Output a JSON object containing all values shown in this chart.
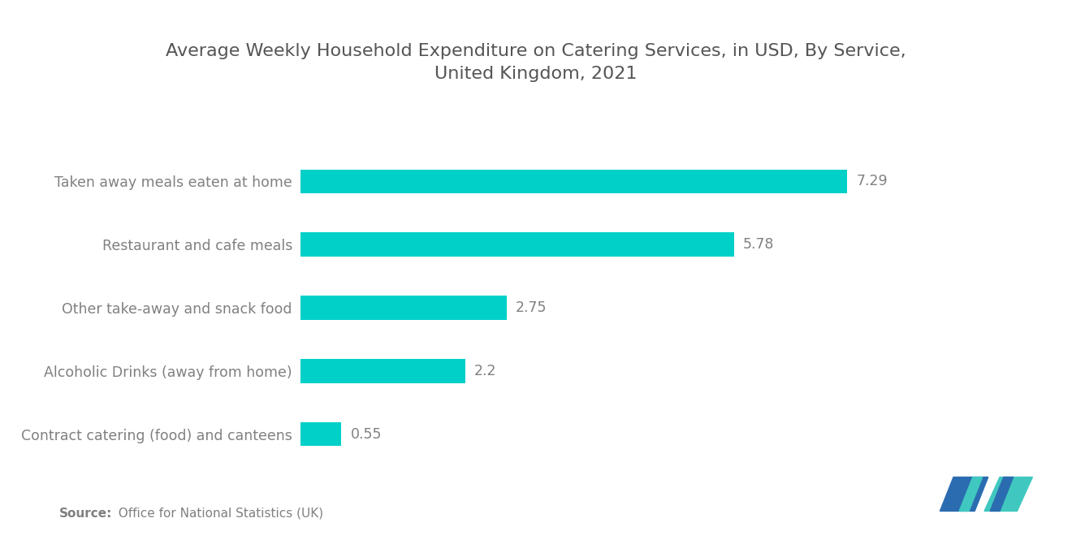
{
  "title": "Average Weekly Household Expenditure on Catering Services, in USD, By Service,\nUnited Kingdom, 2021",
  "categories": [
    "Contract catering (food) and canteens",
    "Alcoholic Drinks (away from home)",
    "Other take-away and snack food",
    "Restaurant and cafe meals",
    "Taken away meals eaten at home"
  ],
  "values": [
    0.55,
    2.2,
    2.75,
    5.78,
    7.29
  ],
  "bar_color": "#00D0C8",
  "label_color": "#808080",
  "title_color": "#555555",
  "value_color": "#808080",
  "background_color": "#ffffff",
  "source_bold": "Source:",
  "source_rest": "  Office for National Statistics (UK)",
  "xlim": [
    0,
    9.0
  ],
  "bar_height": 0.38,
  "title_fontsize": 16,
  "label_fontsize": 12.5,
  "value_fontsize": 12.5,
  "source_fontsize": 11,
  "logo_blue": "#2B6CB0",
  "logo_teal": "#40C8C0"
}
